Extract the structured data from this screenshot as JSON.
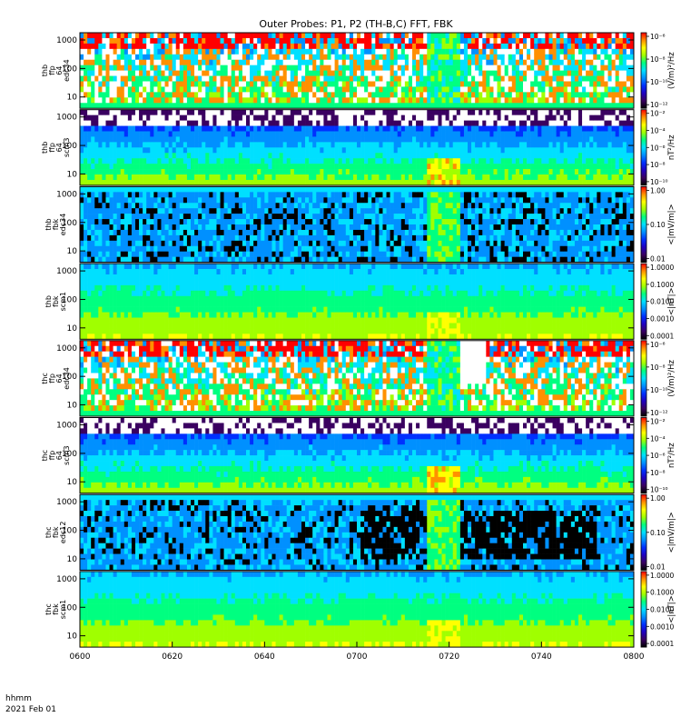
{
  "title": "Outer Probes: P1, P2 (TH-B,C) FFT, FBK",
  "colormap": [
    "#000000",
    "#3a0060",
    "#2000c0",
    "#0030ff",
    "#0090ff",
    "#00e0ff",
    "#00ff80",
    "#a0ff00",
    "#ffff00",
    "#ff9000",
    "#ff0000"
  ],
  "chart_data": {
    "type": "heatmap",
    "x_axis": {
      "ticks": [
        "0600",
        "0620",
        "0640",
        "0700",
        "0720",
        "0740",
        "0800"
      ],
      "range": [
        "06:00",
        "08:00"
      ],
      "label_line1": "hhmm",
      "label_line2": "2021 Feb 01"
    },
    "panels": [
      {
        "ylabel": [
          "thb",
          "ffp",
          "64",
          "edc34"
        ],
        "yticks": [
          "1000",
          "100",
          "10"
        ],
        "zlabel": "(V/m)²/Hz",
        "zticks": [
          "10⁻⁶",
          "10⁻⁸",
          "10⁻¹⁰",
          "10⁻¹²"
        ]
      },
      {
        "ylabel": [
          "thb",
          "ffp",
          "64",
          "scm3"
        ],
        "yticks": [
          "1000",
          "100",
          "10"
        ],
        "zlabel": "nT²/Hz",
        "zticks": [
          "10⁻²",
          "10⁻⁴",
          "10⁻⁶",
          "10⁻⁸",
          "10⁻¹⁰"
        ]
      },
      {
        "ylabel": [
          "thb",
          "fbk",
          "edc34"
        ],
        "yticks": [
          "1000",
          "100",
          "10"
        ],
        "zlabel": "<|mV/m|>",
        "zticks": [
          "1.00",
          "0.10",
          "0.01"
        ]
      },
      {
        "ylabel": [
          "thb",
          "fbk",
          "scm1"
        ],
        "yticks": [
          "1000",
          "100",
          "10"
        ],
        "zlabel": "<|nT|>",
        "zticks": [
          "1.0000",
          "0.1000",
          "0.0100",
          "0.0010",
          "0.0001"
        ]
      },
      {
        "ylabel": [
          "thc",
          "ffp",
          "64",
          "edc34"
        ],
        "yticks": [
          "1000",
          "100",
          "10"
        ],
        "zlabel": "(V/m)²/Hz",
        "zticks": [
          "10⁻⁶",
          "10⁻⁸",
          "10⁻¹⁰",
          "10⁻¹²"
        ]
      },
      {
        "ylabel": [
          "thc",
          "ffp",
          "64",
          "scm3"
        ],
        "yticks": [
          "1000",
          "100",
          "10"
        ],
        "zlabel": "nT²/Hz",
        "zticks": [
          "10⁻²",
          "10⁻⁴",
          "10⁻⁶",
          "10⁻⁸",
          "10⁻¹⁰"
        ]
      },
      {
        "ylabel": [
          "thc",
          "fbk",
          "edc12"
        ],
        "yticks": [
          "1000",
          "100",
          "10"
        ],
        "zlabel": "<|mV/m|>",
        "zticks": [
          "1.00",
          "0.10",
          "0.01"
        ]
      },
      {
        "ylabel": [
          "thc",
          "fbk",
          "scm1"
        ],
        "yticks": [
          "1000",
          "100",
          "10"
        ],
        "zlabel": "<|nT|>",
        "zticks": [
          "1.0000",
          "0.1000",
          "0.0100",
          "0.0010",
          "0.0001"
        ]
      }
    ]
  }
}
